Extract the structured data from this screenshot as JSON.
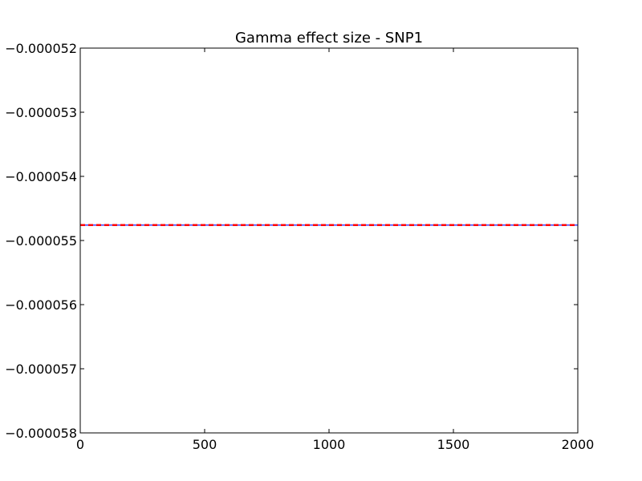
{
  "chart_data": {
    "type": "line",
    "title": "Gamma effect size - SNP1",
    "xlabel": "",
    "ylabel": "",
    "xlim": [
      0,
      2000
    ],
    "ylim": [
      -5.8e-05,
      -5.2e-05
    ],
    "xticks": [
      0,
      500,
      1000,
      1500,
      2000
    ],
    "xtick_labels": [
      "0",
      "500",
      "1000",
      "1500",
      "2000"
    ],
    "yticks": [
      -5.2e-05,
      -5.3e-05,
      -5.4e-05,
      -5.5e-05,
      -5.6e-05,
      -5.7e-05,
      -5.8e-05
    ],
    "ytick_labels": [
      "−0.000052",
      "−0.000053",
      "−0.000054",
      "−0.000055",
      "−0.000056",
      "−0.000057",
      "−0.000058"
    ],
    "grid": false,
    "series": [
      {
        "style": "solid",
        "color": "#0000ff",
        "x": [
          0,
          2000
        ],
        "y": [
          -5.476e-05,
          -5.476e-05
        ]
      },
      {
        "style": "dashed",
        "color": "#ff0000",
        "x": [
          0,
          2000
        ],
        "y": [
          -5.476e-05,
          -5.476e-05
        ]
      }
    ]
  }
}
